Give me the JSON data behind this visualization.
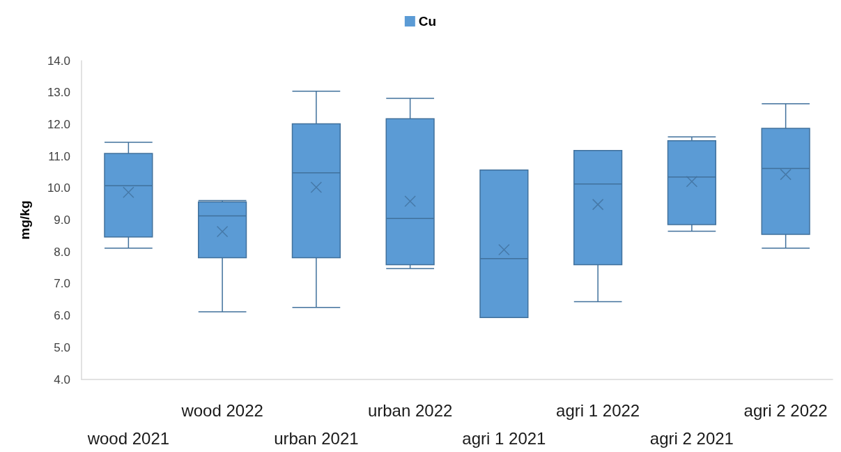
{
  "chart_data": {
    "type": "box",
    "ylabel": "mg/kg",
    "categories": [
      "wood 2021",
      "wood 2022",
      "urban 2021",
      "urban 2022",
      "agri 1 2021",
      "agri 1 2022",
      "agri 2 2021",
      "agri 2 2022"
    ],
    "series": [
      {
        "name": "Cu",
        "color": "#5b9bd5",
        "boxes": [
          {
            "low": 8.12,
            "q1": 8.47,
            "median": 10.08,
            "q3": 11.09,
            "high": 11.44,
            "mean": 9.87
          },
          {
            "low": 6.12,
            "q1": 7.82,
            "median": 9.13,
            "q3": 9.57,
            "high": 9.61,
            "mean": 8.64
          },
          {
            "low": 6.26,
            "q1": 7.82,
            "median": 10.48,
            "q3": 12.02,
            "high": 13.04,
            "mean": 10.03
          },
          {
            "low": 7.48,
            "q1": 7.6,
            "median": 9.05,
            "q3": 12.18,
            "high": 12.82,
            "mean": 9.59
          },
          {
            "low": 5.94,
            "q1": 5.94,
            "median": 7.79,
            "q3": 10.57,
            "high": 10.57,
            "mean": 8.07
          },
          {
            "low": 6.44,
            "q1": 7.6,
            "median": 10.13,
            "q3": 11.18,
            "high": 11.18,
            "mean": 9.49
          },
          {
            "low": 8.65,
            "q1": 8.86,
            "median": 10.35,
            "q3": 11.49,
            "high": 11.61,
            "mean": 10.21
          },
          {
            "low": 8.12,
            "q1": 8.55,
            "median": 10.62,
            "q3": 11.88,
            "high": 12.65,
            "mean": 10.43
          }
        ]
      }
    ],
    "ylim": [
      4,
      14
    ],
    "yticks": [
      {
        "value": 4,
        "label": "4.0"
      },
      {
        "value": 5,
        "label": "5.0"
      },
      {
        "value": 6,
        "label": "6.0"
      },
      {
        "value": 7,
        "label": "7.0"
      },
      {
        "value": 8,
        "label": "8.0"
      },
      {
        "value": 9,
        "label": "9.0"
      },
      {
        "value": 10,
        "label": "10.0"
      },
      {
        "value": 11,
        "label": "11.0"
      },
      {
        "value": 12,
        "label": "12.0"
      },
      {
        "value": 13,
        "label": "13.0"
      },
      {
        "value": 14,
        "label": "14.0"
      }
    ],
    "grid": false,
    "legend": "top",
    "marker": "cross"
  }
}
